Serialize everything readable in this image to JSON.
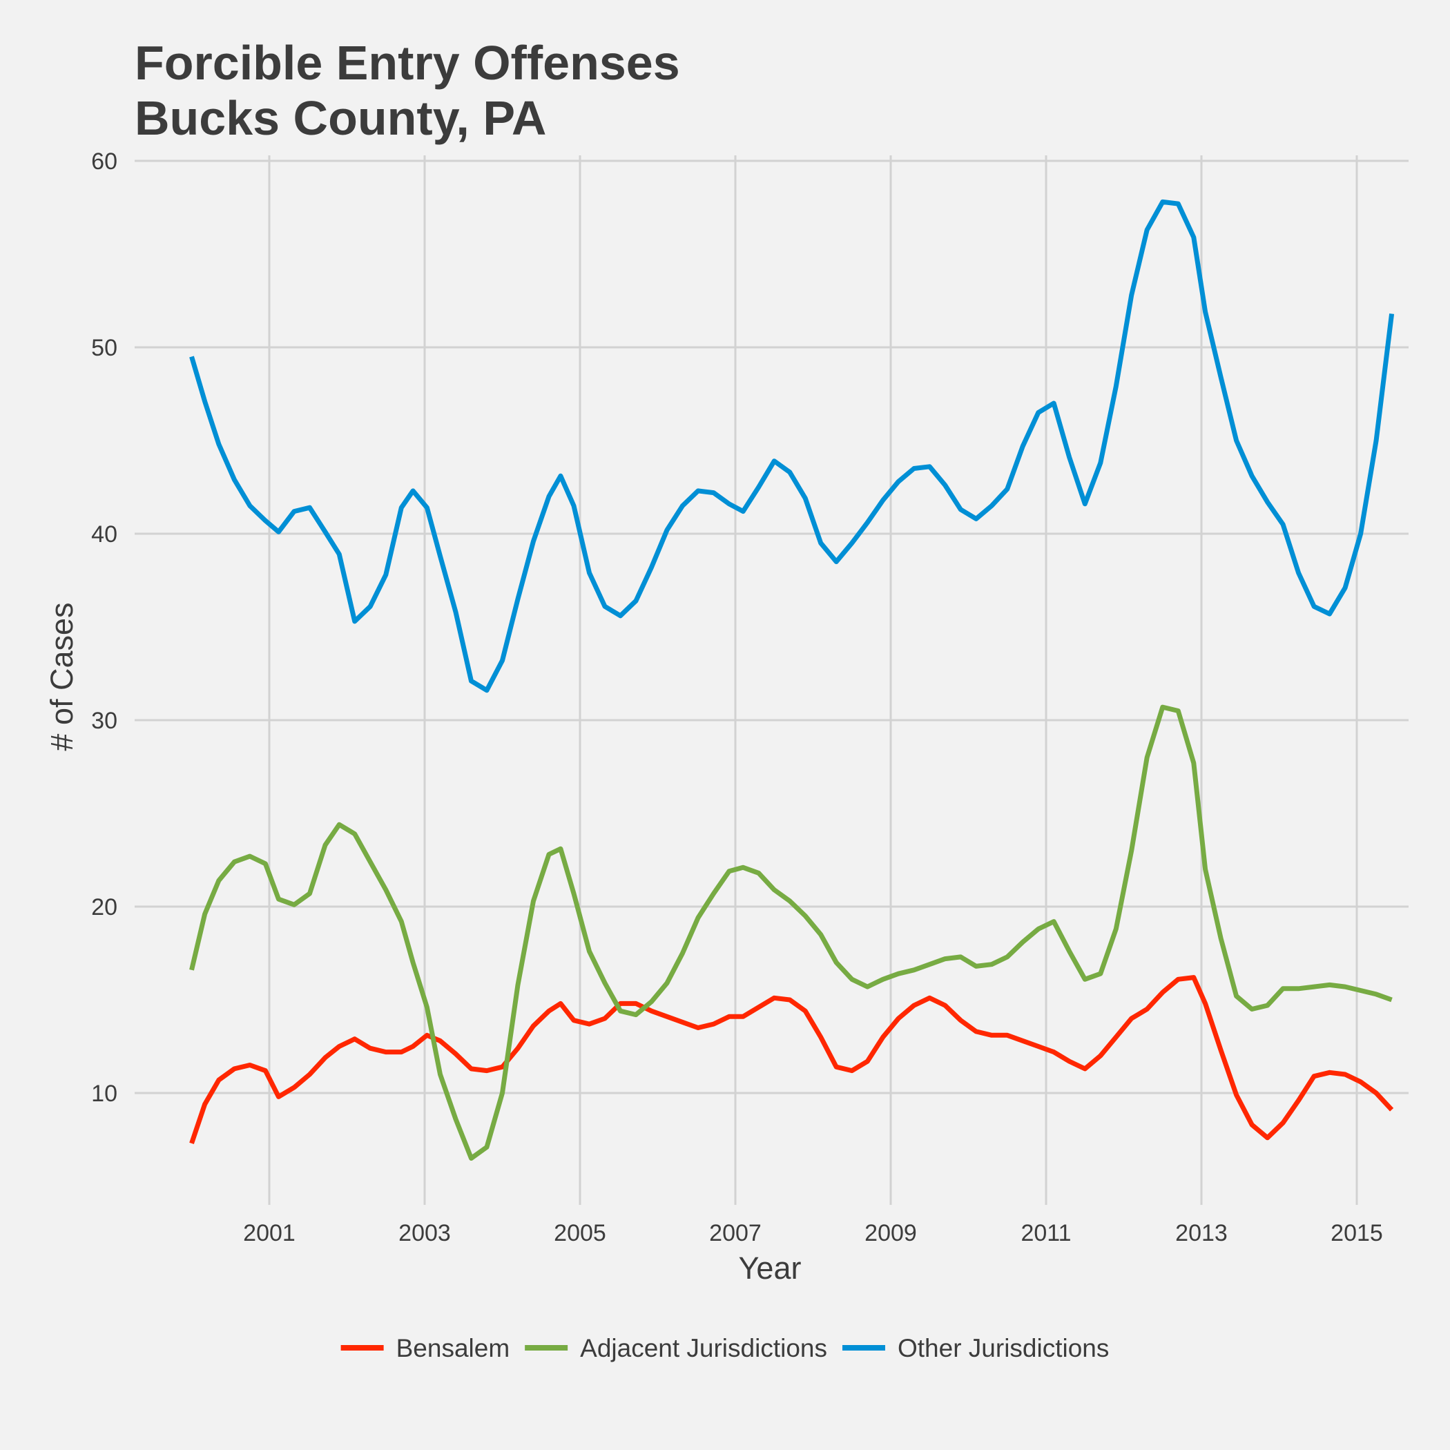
{
  "chart_data": {
    "type": "line",
    "title": [
      "Forcible Entry Offenses",
      "Bucks County, PA"
    ],
    "xlabel": "Year",
    "ylabel": "# of Cases",
    "xlim": [
      1999.5,
      2015.7
    ],
    "ylim": [
      4.5,
      60.5
    ],
    "x_ticks": [
      2001,
      2003,
      2005,
      2007,
      2009,
      2011,
      2013,
      2015
    ],
    "y_ticks": [
      10,
      20,
      30,
      40,
      50,
      60
    ],
    "grid": true,
    "legend_position": "bottom",
    "series": [
      {
        "name": "Bensalem",
        "color": "#FF2700",
        "points": [
          [
            2000.0,
            7.3
          ],
          [
            2000.17,
            9.4
          ],
          [
            2000.35,
            10.7
          ],
          [
            2000.55,
            11.3
          ],
          [
            2000.75,
            11.5
          ],
          [
            2000.95,
            11.2
          ],
          [
            2001.12,
            9.8
          ],
          [
            2001.32,
            10.3
          ],
          [
            2001.52,
            11.0
          ],
          [
            2001.72,
            11.9
          ],
          [
            2001.9,
            12.5
          ],
          [
            2002.1,
            12.9
          ],
          [
            2002.3,
            12.4
          ],
          [
            2002.5,
            12.2
          ],
          [
            2002.7,
            12.2
          ],
          [
            2002.85,
            12.5
          ],
          [
            2003.03,
            13.1
          ],
          [
            2003.2,
            12.8
          ],
          [
            2003.4,
            12.1
          ],
          [
            2003.6,
            11.3
          ],
          [
            2003.8,
            11.2
          ],
          [
            2004.0,
            11.4
          ],
          [
            2004.2,
            12.4
          ],
          [
            2004.4,
            13.6
          ],
          [
            2004.6,
            14.4
          ],
          [
            2004.75,
            14.8
          ],
          [
            2004.92,
            13.9
          ],
          [
            2005.12,
            13.7
          ],
          [
            2005.32,
            14.0
          ],
          [
            2005.52,
            14.8
          ],
          [
            2005.72,
            14.8
          ],
          [
            2005.92,
            14.4
          ],
          [
            2006.12,
            14.1
          ],
          [
            2006.32,
            13.8
          ],
          [
            2006.52,
            13.5
          ],
          [
            2006.72,
            13.7
          ],
          [
            2006.92,
            14.1
          ],
          [
            2007.1,
            14.1
          ],
          [
            2007.3,
            14.6
          ],
          [
            2007.5,
            15.1
          ],
          [
            2007.7,
            15.0
          ],
          [
            2007.9,
            14.4
          ],
          [
            2008.1,
            13.0
          ],
          [
            2008.3,
            11.4
          ],
          [
            2008.5,
            11.2
          ],
          [
            2008.7,
            11.7
          ],
          [
            2008.9,
            13.0
          ],
          [
            2009.1,
            14.0
          ],
          [
            2009.3,
            14.7
          ],
          [
            2009.5,
            15.1
          ],
          [
            2009.7,
            14.7
          ],
          [
            2009.9,
            13.9
          ],
          [
            2010.1,
            13.3
          ],
          [
            2010.3,
            13.1
          ],
          [
            2010.5,
            13.1
          ],
          [
            2010.7,
            12.8
          ],
          [
            2010.9,
            12.5
          ],
          [
            2011.1,
            12.2
          ],
          [
            2011.3,
            11.7
          ],
          [
            2011.5,
            11.3
          ],
          [
            2011.7,
            12.0
          ],
          [
            2011.9,
            13.0
          ],
          [
            2012.1,
            14.0
          ],
          [
            2012.3,
            14.5
          ],
          [
            2012.5,
            15.4
          ],
          [
            2012.7,
            16.1
          ],
          [
            2012.9,
            16.2
          ],
          [
            2013.05,
            14.8
          ],
          [
            2013.25,
            12.3
          ],
          [
            2013.45,
            9.9
          ],
          [
            2013.65,
            8.3
          ],
          [
            2013.85,
            7.6
          ],
          [
            2014.05,
            8.4
          ],
          [
            2014.25,
            9.6
          ],
          [
            2014.45,
            10.9
          ],
          [
            2014.65,
            11.1
          ],
          [
            2014.85,
            11.0
          ],
          [
            2015.05,
            10.6
          ],
          [
            2015.25,
            10.0
          ],
          [
            2015.45,
            9.1
          ]
        ]
      },
      {
        "name": "Adjacent Jurisdictions",
        "color": "#77AB43",
        "points": [
          [
            2000.0,
            16.6
          ],
          [
            2000.17,
            19.6
          ],
          [
            2000.35,
            21.4
          ],
          [
            2000.55,
            22.4
          ],
          [
            2000.75,
            22.7
          ],
          [
            2000.95,
            22.3
          ],
          [
            2001.12,
            20.4
          ],
          [
            2001.32,
            20.1
          ],
          [
            2001.52,
            20.7
          ],
          [
            2001.72,
            23.3
          ],
          [
            2001.9,
            24.4
          ],
          [
            2002.1,
            23.9
          ],
          [
            2002.3,
            22.4
          ],
          [
            2002.5,
            20.9
          ],
          [
            2002.7,
            19.2
          ],
          [
            2002.85,
            17.0
          ],
          [
            2003.03,
            14.6
          ],
          [
            2003.2,
            11.0
          ],
          [
            2003.4,
            8.6
          ],
          [
            2003.6,
            6.5
          ],
          [
            2003.8,
            7.1
          ],
          [
            2004.0,
            10.0
          ],
          [
            2004.2,
            15.8
          ],
          [
            2004.4,
            20.3
          ],
          [
            2004.6,
            22.8
          ],
          [
            2004.75,
            23.1
          ],
          [
            2004.92,
            20.7
          ],
          [
            2005.12,
            17.6
          ],
          [
            2005.32,
            15.9
          ],
          [
            2005.52,
            14.4
          ],
          [
            2005.72,
            14.2
          ],
          [
            2005.92,
            14.9
          ],
          [
            2006.12,
            15.9
          ],
          [
            2006.32,
            17.5
          ],
          [
            2006.52,
            19.4
          ],
          [
            2006.72,
            20.7
          ],
          [
            2006.92,
            21.9
          ],
          [
            2007.1,
            22.1
          ],
          [
            2007.3,
            21.8
          ],
          [
            2007.5,
            20.9
          ],
          [
            2007.7,
            20.3
          ],
          [
            2007.9,
            19.5
          ],
          [
            2008.1,
            18.5
          ],
          [
            2008.3,
            17.0
          ],
          [
            2008.5,
            16.1
          ],
          [
            2008.7,
            15.7
          ],
          [
            2008.9,
            16.1
          ],
          [
            2009.1,
            16.4
          ],
          [
            2009.3,
            16.6
          ],
          [
            2009.5,
            16.9
          ],
          [
            2009.7,
            17.2
          ],
          [
            2009.9,
            17.3
          ],
          [
            2010.1,
            16.8
          ],
          [
            2010.3,
            16.9
          ],
          [
            2010.5,
            17.3
          ],
          [
            2010.7,
            18.1
          ],
          [
            2010.9,
            18.8
          ],
          [
            2011.1,
            19.2
          ],
          [
            2011.3,
            17.6
          ],
          [
            2011.5,
            16.1
          ],
          [
            2011.7,
            16.4
          ],
          [
            2011.9,
            18.8
          ],
          [
            2012.1,
            23.0
          ],
          [
            2012.3,
            28.0
          ],
          [
            2012.5,
            30.7
          ],
          [
            2012.7,
            30.5
          ],
          [
            2012.9,
            27.7
          ],
          [
            2013.05,
            22.0
          ],
          [
            2013.25,
            18.3
          ],
          [
            2013.45,
            15.2
          ],
          [
            2013.65,
            14.5
          ],
          [
            2013.85,
            14.7
          ],
          [
            2014.05,
            15.6
          ],
          [
            2014.25,
            15.6
          ],
          [
            2014.45,
            15.7
          ],
          [
            2014.65,
            15.8
          ],
          [
            2014.85,
            15.7
          ],
          [
            2015.05,
            15.5
          ],
          [
            2015.25,
            15.3
          ],
          [
            2015.45,
            15.0
          ]
        ]
      },
      {
        "name": "Other Jurisdictions",
        "color": "#008FD5",
        "points": [
          [
            2000.0,
            49.5
          ],
          [
            2000.17,
            47.1
          ],
          [
            2000.35,
            44.8
          ],
          [
            2000.55,
            42.9
          ],
          [
            2000.75,
            41.5
          ],
          [
            2000.95,
            40.7
          ],
          [
            2001.12,
            40.1
          ],
          [
            2001.32,
            41.2
          ],
          [
            2001.52,
            41.4
          ],
          [
            2001.72,
            40.1
          ],
          [
            2001.9,
            38.9
          ],
          [
            2002.1,
            35.3
          ],
          [
            2002.3,
            36.1
          ],
          [
            2002.5,
            37.8
          ],
          [
            2002.7,
            41.4
          ],
          [
            2002.85,
            42.3
          ],
          [
            2003.03,
            41.4
          ],
          [
            2003.2,
            38.8
          ],
          [
            2003.4,
            35.8
          ],
          [
            2003.6,
            32.1
          ],
          [
            2003.8,
            31.6
          ],
          [
            2004.0,
            33.2
          ],
          [
            2004.2,
            36.5
          ],
          [
            2004.4,
            39.6
          ],
          [
            2004.6,
            42.0
          ],
          [
            2004.75,
            43.1
          ],
          [
            2004.92,
            41.5
          ],
          [
            2005.12,
            37.9
          ],
          [
            2005.32,
            36.1
          ],
          [
            2005.52,
            35.6
          ],
          [
            2005.72,
            36.4
          ],
          [
            2005.92,
            38.2
          ],
          [
            2006.12,
            40.2
          ],
          [
            2006.32,
            41.5
          ],
          [
            2006.52,
            42.3
          ],
          [
            2006.72,
            42.2
          ],
          [
            2006.92,
            41.6
          ],
          [
            2007.1,
            41.2
          ],
          [
            2007.3,
            42.5
          ],
          [
            2007.5,
            43.9
          ],
          [
            2007.7,
            43.3
          ],
          [
            2007.9,
            41.9
          ],
          [
            2008.1,
            39.5
          ],
          [
            2008.3,
            38.5
          ],
          [
            2008.5,
            39.5
          ],
          [
            2008.7,
            40.6
          ],
          [
            2008.9,
            41.8
          ],
          [
            2009.1,
            42.8
          ],
          [
            2009.3,
            43.5
          ],
          [
            2009.5,
            43.6
          ],
          [
            2009.7,
            42.6
          ],
          [
            2009.9,
            41.3
          ],
          [
            2010.1,
            40.8
          ],
          [
            2010.3,
            41.5
          ],
          [
            2010.5,
            42.4
          ],
          [
            2010.7,
            44.7
          ],
          [
            2010.9,
            46.5
          ],
          [
            2011.1,
            47.0
          ],
          [
            2011.3,
            44.1
          ],
          [
            2011.5,
            41.6
          ],
          [
            2011.7,
            43.8
          ],
          [
            2011.9,
            47.9
          ],
          [
            2012.1,
            52.8
          ],
          [
            2012.3,
            56.3
          ],
          [
            2012.5,
            57.8
          ],
          [
            2012.7,
            57.7
          ],
          [
            2012.9,
            55.9
          ],
          [
            2013.05,
            51.9
          ],
          [
            2013.25,
            48.4
          ],
          [
            2013.45,
            45.0
          ],
          [
            2013.65,
            43.1
          ],
          [
            2013.85,
            41.7
          ],
          [
            2014.05,
            40.5
          ],
          [
            2014.25,
            37.9
          ],
          [
            2014.45,
            36.1
          ],
          [
            2014.65,
            35.7
          ],
          [
            2014.85,
            37.1
          ],
          [
            2015.05,
            40.0
          ],
          [
            2015.25,
            45.0
          ],
          [
            2015.45,
            51.8
          ]
        ]
      }
    ]
  }
}
